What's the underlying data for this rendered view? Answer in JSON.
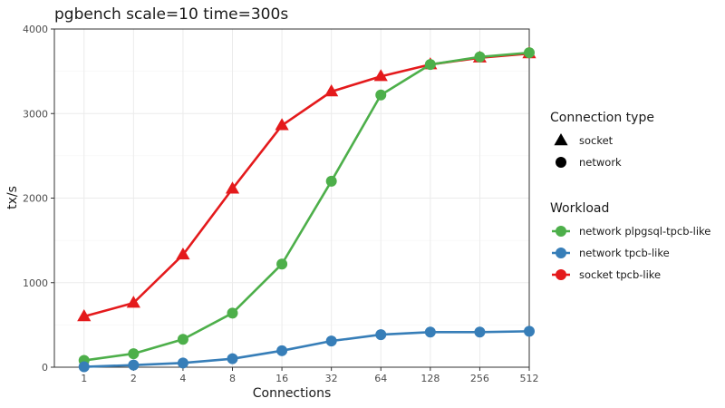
{
  "chart_data": {
    "type": "line",
    "title": "pgbench scale=10 time=300s",
    "xlabel": "Connections",
    "ylabel": "tx/s",
    "categories": [
      "1",
      "2",
      "4",
      "8",
      "16",
      "32",
      "64",
      "128",
      "256",
      "512"
    ],
    "x_scale": "log2",
    "ylim": [
      0,
      4000
    ],
    "yticks": [
      "0",
      "1000",
      "2000",
      "3000",
      "4000"
    ],
    "grid": true,
    "legend_position": "right",
    "series": [
      {
        "name": "socket tpcb-like",
        "shape": "triangle",
        "color": "#e41a1c",
        "values": [
          600,
          760,
          1330,
          2110,
          2860,
          3260,
          3440,
          3580,
          3660,
          3710
        ]
      },
      {
        "name": "network plpgsql-tpcb-like",
        "shape": "circle",
        "color": "#4daf4a",
        "values": [
          80,
          160,
          330,
          640,
          1220,
          2200,
          3220,
          3580,
          3670,
          3720
        ]
      },
      {
        "name": "network tpcb-like",
        "shape": "circle",
        "color": "#377eb8",
        "values": [
          5,
          25,
          50,
          100,
          195,
          310,
          385,
          415,
          415,
          425
        ]
      }
    ],
    "legend": {
      "shape_title": "Connection type",
      "shapes": [
        {
          "label": "socket",
          "shape": "triangle"
        },
        {
          "label": "network",
          "shape": "circle"
        }
      ],
      "color_title": "Workload",
      "colors": [
        {
          "label": "network plpgsql-tpcb-like",
          "color": "#4daf4a"
        },
        {
          "label": "network tpcb-like",
          "color": "#377eb8"
        },
        {
          "label": "socket tpcb-like",
          "color": "#e41a1c"
        }
      ]
    }
  }
}
